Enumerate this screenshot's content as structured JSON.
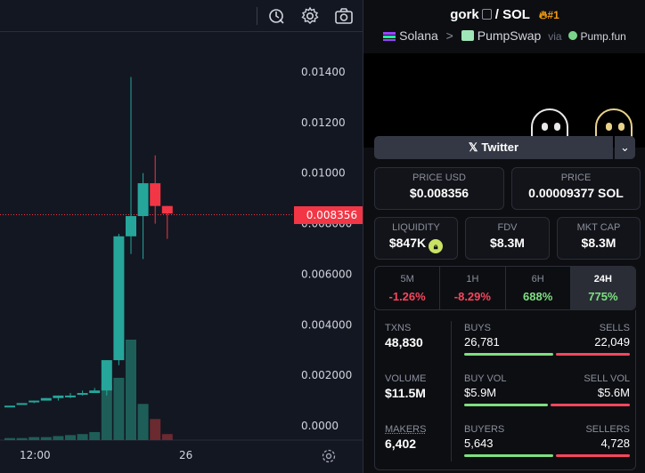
{
  "chart": {
    "price_label": "0.008356",
    "y_ticks": [
      "0.01400",
      "0.01200",
      "0.01000",
      "0.008000",
      "0.006000",
      "0.004000",
      "0.002000",
      "0.0000"
    ],
    "x_ticks": [
      "12:00",
      "26"
    ],
    "candles": [
      {
        "o": 0.0008,
        "h": 0.0008,
        "l": 0.0008,
        "c": 0.0008
      },
      {
        "o": 0.0009,
        "h": 0.0009,
        "l": 0.0009,
        "c": 0.0009
      },
      {
        "o": 0.001,
        "h": 0.001,
        "l": 0.0009,
        "c": 0.001
      },
      {
        "o": 0.001,
        "h": 0.0011,
        "l": 0.001,
        "c": 0.0011
      },
      {
        "o": 0.0011,
        "h": 0.0012,
        "l": 0.001,
        "c": 0.0012
      },
      {
        "o": 0.0012,
        "h": 0.0013,
        "l": 0.0011,
        "c": 0.0012
      },
      {
        "o": 0.0013,
        "h": 0.0014,
        "l": 0.0012,
        "c": 0.0013
      },
      {
        "o": 0.0013,
        "h": 0.0015,
        "l": 0.0013,
        "c": 0.0014
      },
      {
        "o": 0.0014,
        "h": 0.0026,
        "l": 0.0012,
        "c": 0.0026
      },
      {
        "o": 0.0026,
        "h": 0.0076,
        "l": 0.0024,
        "c": 0.0075
      },
      {
        "o": 0.0075,
        "h": 0.0138,
        "l": 0.0068,
        "c": 0.0083
      },
      {
        "o": 0.0083,
        "h": 0.01,
        "l": 0.0066,
        "c": 0.0096
      },
      {
        "o": 0.0096,
        "h": 0.0107,
        "l": 0.008,
        "c": 0.0087
      },
      {
        "o": 0.0087,
        "h": 0.0087,
        "l": 0.0074,
        "c": 0.0084
      }
    ],
    "volumes": [
      0.02,
      0.02,
      0.03,
      0.03,
      0.04,
      0.05,
      0.06,
      0.08,
      0.55,
      0.62,
      1.0,
      0.36,
      0.21,
      0.06
    ],
    "colors": {
      "up": "#26a69a",
      "down": "#f23645",
      "vol_up": "#1e5e58",
      "vol_down": "#6b2930"
    }
  },
  "toolbar": {
    "icons": [
      "indicator-icon",
      "gear-icon",
      "camera-icon"
    ]
  },
  "pair": {
    "base": "gork",
    "separator": "/",
    "quote": "SOL",
    "rank": "#1",
    "chain": "Solana",
    "dex": "PumpSwap",
    "via": "via",
    "launchpad": "Pump.fun"
  },
  "twitter": {
    "label": "Twitter"
  },
  "prices": {
    "usd_label": "PRICE USD",
    "usd_value": "$0.008356",
    "native_label": "PRICE",
    "native_value": "0.00009377 SOL"
  },
  "metrics": {
    "liquidity_label": "LIQUIDITY",
    "liquidity_value": "$847K",
    "fdv_label": "FDV",
    "fdv_value": "$8.3M",
    "mcap_label": "MKT CAP",
    "mcap_value": "$8.3M"
  },
  "timeframes": [
    {
      "label": "5M",
      "value": "-1.26%",
      "dir": "neg"
    },
    {
      "label": "1H",
      "value": "-8.29%",
      "dir": "neg"
    },
    {
      "label": "6H",
      "value": "688%",
      "dir": "pos"
    },
    {
      "label": "24H",
      "value": "775%",
      "dir": "pos",
      "active": true
    }
  ],
  "stats": {
    "txns_label": "TXNS",
    "txns_value": "48,830",
    "volume_label": "VOLUME",
    "volume_value": "$11.5M",
    "makers_label": "MAKERS",
    "makers_value": "6,402",
    "buys_label": "BUYS",
    "buys_value": "26,781",
    "sells_label": "SELLS",
    "sells_value": "22,049",
    "buyvol_label": "BUY VOL",
    "buyvol_value": "$5.9M",
    "sellvol_label": "SELL VOL",
    "sellvol_value": "$5.6M",
    "buyers_label": "BUYERS",
    "buyers_value": "5,643",
    "sellers_label": "SELLERS",
    "sellers_value": "4,728",
    "buys_ratio": 0.548,
    "vol_ratio": 0.513,
    "buyers_ratio": 0.544
  }
}
